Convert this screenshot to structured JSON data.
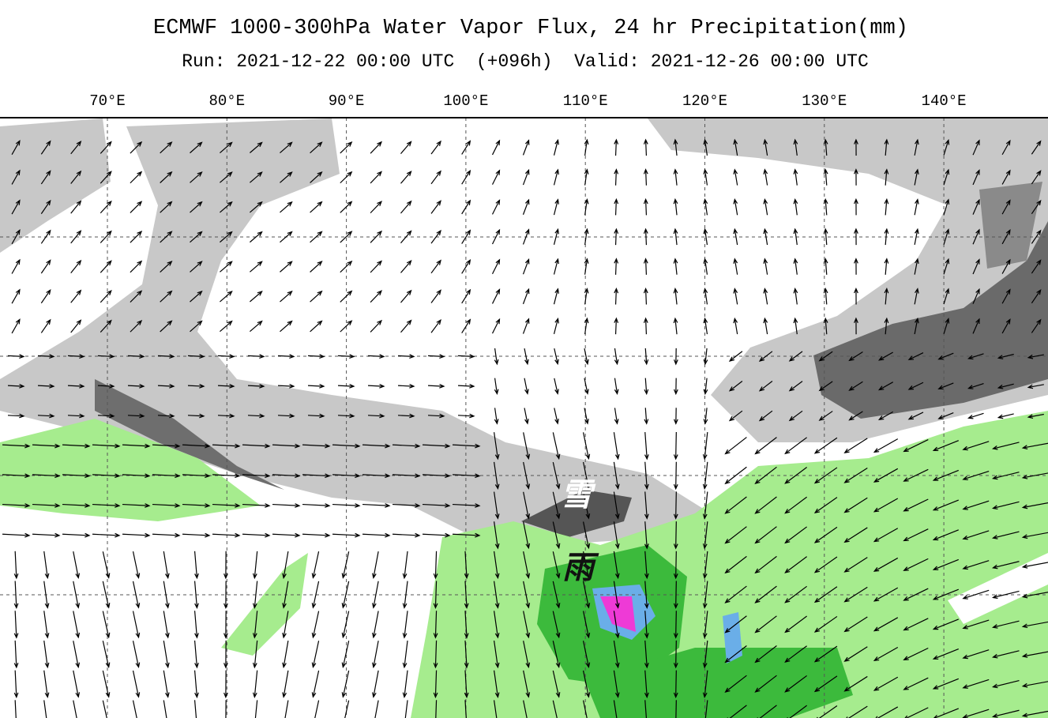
{
  "header": {
    "title": "ECMWF 1000-300hPa Water Vapor Flux, 24 hr Precipitation(mm)",
    "subtitle": "Run: 2021-12-22 00:00 UTC  (+096h)  Valid: 2021-12-26 00:00 UTC"
  },
  "map": {
    "longitude_labels": [
      "70°E",
      "80°E",
      "90°E",
      "100°E",
      "110°E",
      "120°E",
      "130°E",
      "140°E"
    ],
    "annotations": [
      "雪",
      "雨"
    ]
  }
}
